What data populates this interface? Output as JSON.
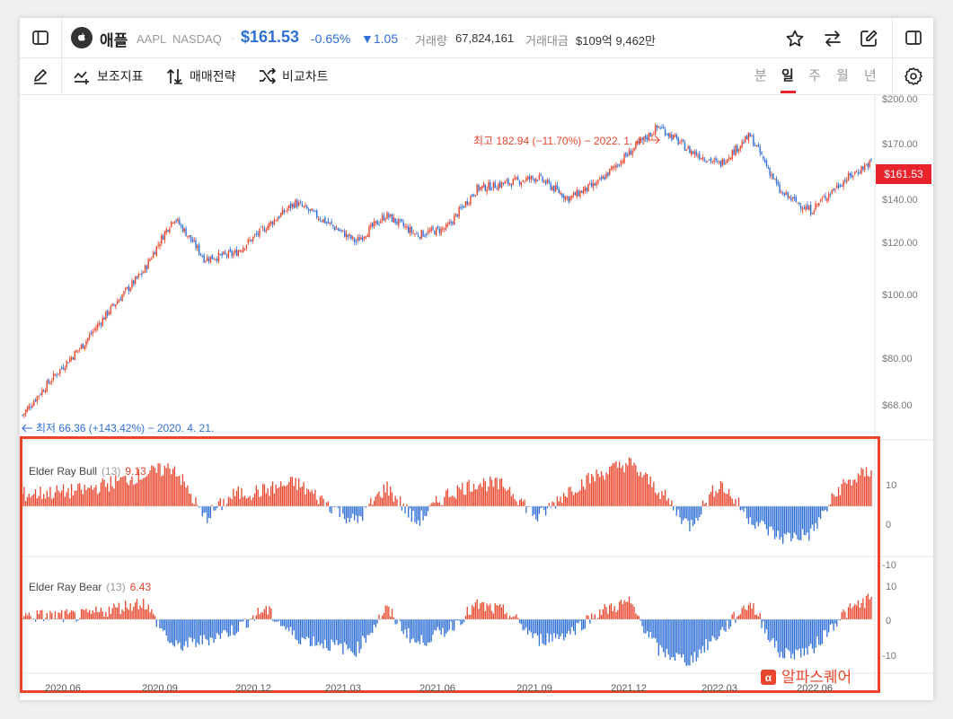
{
  "header": {
    "stock_name": "애플",
    "ticker": "AAPL",
    "exchange": "NASDAQ",
    "price": "$161.53",
    "change_pct": "-0.65%",
    "change_abs": "▼1.05",
    "volume_label": "거래량",
    "volume_value": "67,824,161",
    "amount_label": "거래대금",
    "amount_value": "$109억 9,462만"
  },
  "toolbar": {
    "indicator_label": "보조지표",
    "strategy_label": "매매전략",
    "compare_label": "비교차트",
    "periods": [
      "분",
      "일",
      "주",
      "월",
      "년"
    ],
    "active_period": "일"
  },
  "price_axis": {
    "labels": [
      "$200.00",
      "$170.00",
      "$140.00",
      "$120.00",
      "$100.00",
      "$80.00",
      "$68.00"
    ],
    "current_badge": "$161.53"
  },
  "annotations": {
    "high": "최고 182.94 (−11.70%) − 2022. 1. 4.",
    "low": "최저 66.36 (+143.42%) − 2020. 4. 21."
  },
  "bull_panel": {
    "name": "Elder Ray Bull",
    "param": "(13)",
    "value": "9.13",
    "axis": [
      "10",
      "0",
      "-10"
    ]
  },
  "bear_panel": {
    "name": "Elder Ray Bear",
    "param": "(13)",
    "value": "6.43",
    "axis": [
      "10",
      "0",
      "-10"
    ]
  },
  "x_axis": {
    "labels": [
      "2020.06",
      "2020.09",
      "2020.12",
      "2021.03",
      "2021.06",
      "2021.09",
      "2021.12",
      "2022.03",
      "2022.06"
    ]
  },
  "watermark": "알파스퀘어",
  "colors": {
    "up": "#e8452c",
    "down": "#2f6fd6",
    "accent_blue": "#2f6fd6",
    "badge": "#e8232c",
    "highlight_box": "#e8452c"
  },
  "chart_data": [
    {
      "type": "candlestick",
      "title": "",
      "x_range": [
        "2020.04",
        "2022.08"
      ],
      "y_scale": "log",
      "ylim": [
        62,
        205
      ],
      "y_ticks": [
        200,
        170,
        140,
        120,
        100,
        80,
        68
      ],
      "keypoints": [
        {
          "x": "2020.04",
          "y": 66.4
        },
        {
          "x": "2020.06",
          "y": 85
        },
        {
          "x": "2020.08",
          "y": 110
        },
        {
          "x": "2020.09",
          "y": 133
        },
        {
          "x": "2020.10",
          "y": 115
        },
        {
          "x": "2020.11",
          "y": 117
        },
        {
          "x": "2020.12",
          "y": 128
        },
        {
          "x": "2021.01",
          "y": 140
        },
        {
          "x": "2021.03",
          "y": 122
        },
        {
          "x": "2021.04",
          "y": 134
        },
        {
          "x": "2021.05",
          "y": 125
        },
        {
          "x": "2021.06",
          "y": 128
        },
        {
          "x": "2021.07",
          "y": 147
        },
        {
          "x": "2021.08",
          "y": 150
        },
        {
          "x": "2021.09",
          "y": 153
        },
        {
          "x": "2021.10",
          "y": 142
        },
        {
          "x": "2021.11",
          "y": 150
        },
        {
          "x": "2022.01",
          "y": 182.9
        },
        {
          "x": "2022.02",
          "y": 168
        },
        {
          "x": "2022.03",
          "y": 160
        },
        {
          "x": "2022.04",
          "y": 177
        },
        {
          "x": "2022.05",
          "y": 145
        },
        {
          "x": "2022.06",
          "y": 136
        },
        {
          "x": "2022.07",
          "y": 150
        },
        {
          "x": "2022.08",
          "y": 161.5
        }
      ]
    },
    {
      "type": "bar",
      "title": "Elder Ray Bull (13)",
      "ylim": [
        -12,
        14
      ],
      "latest": 9.13,
      "monthly_approx": [
        {
          "x": "2020.04",
          "y": 3
        },
        {
          "x": "2020.06",
          "y": 4
        },
        {
          "x": "2020.08",
          "y": 8
        },
        {
          "x": "2020.09",
          "y": 10
        },
        {
          "x": "2020.10",
          "y": -3
        },
        {
          "x": "2020.11",
          "y": 3
        },
        {
          "x": "2020.12",
          "y": 4
        },
        {
          "x": "2021.01",
          "y": 6
        },
        {
          "x": "2021.03",
          "y": -4
        },
        {
          "x": "2021.04",
          "y": 5
        },
        {
          "x": "2021.05",
          "y": -4
        },
        {
          "x": "2021.06",
          "y": 3
        },
        {
          "x": "2021.07",
          "y": 6
        },
        {
          "x": "2021.08",
          "y": 5
        },
        {
          "x": "2021.09",
          "y": -3
        },
        {
          "x": "2021.10",
          "y": 4
        },
        {
          "x": "2021.11",
          "y": 8
        },
        {
          "x": "2021.12",
          "y": 11
        },
        {
          "x": "2022.01",
          "y": 4
        },
        {
          "x": "2022.02",
          "y": -5
        },
        {
          "x": "2022.03",
          "y": 6
        },
        {
          "x": "2022.04",
          "y": -3
        },
        {
          "x": "2022.05",
          "y": -8
        },
        {
          "x": "2022.06",
          "y": -7
        },
        {
          "x": "2022.07",
          "y": 5
        },
        {
          "x": "2022.08",
          "y": 9.13
        }
      ]
    },
    {
      "type": "bar",
      "title": "Elder Ray Bear (13)",
      "ylim": [
        -14,
        12
      ],
      "latest": 6.43,
      "monthly_approx": [
        {
          "x": "2020.04",
          "y": 1
        },
        {
          "x": "2020.06",
          "y": 1
        },
        {
          "x": "2020.08",
          "y": 5
        },
        {
          "x": "2020.09",
          "y": -8
        },
        {
          "x": "2020.10",
          "y": -6
        },
        {
          "x": "2020.11",
          "y": -3
        },
        {
          "x": "2020.12",
          "y": 3
        },
        {
          "x": "2021.01",
          "y": -5
        },
        {
          "x": "2021.03",
          "y": -9
        },
        {
          "x": "2021.04",
          "y": 3
        },
        {
          "x": "2021.05",
          "y": -7
        },
        {
          "x": "2021.06",
          "y": -3
        },
        {
          "x": "2021.07",
          "y": 4
        },
        {
          "x": "2021.08",
          "y": 2
        },
        {
          "x": "2021.09",
          "y": -6
        },
        {
          "x": "2021.10",
          "y": -4
        },
        {
          "x": "2021.11",
          "y": 2
        },
        {
          "x": "2021.12",
          "y": 5
        },
        {
          "x": "2022.01",
          "y": -9
        },
        {
          "x": "2022.02",
          "y": -12
        },
        {
          "x": "2022.03",
          "y": -4
        },
        {
          "x": "2022.04",
          "y": 5
        },
        {
          "x": "2022.05",
          "y": -10
        },
        {
          "x": "2022.06",
          "y": -9
        },
        {
          "x": "2022.07",
          "y": 1
        },
        {
          "x": "2022.08",
          "y": 6.43
        }
      ]
    }
  ]
}
